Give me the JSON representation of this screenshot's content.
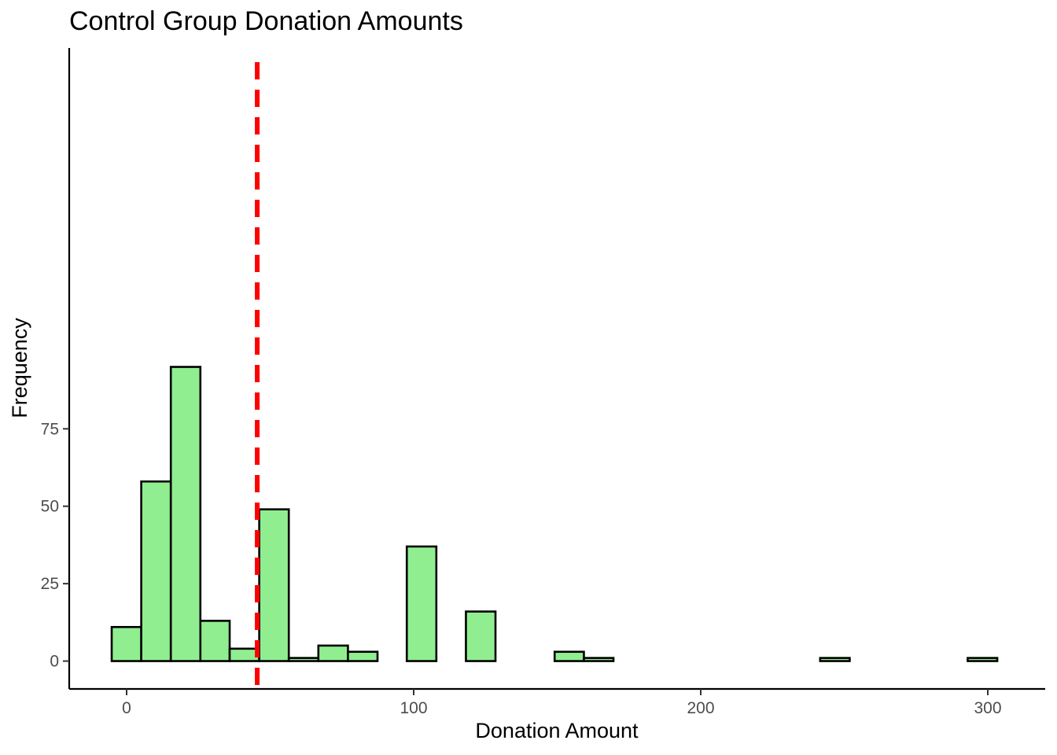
{
  "chart_data": {
    "type": "bar",
    "title": "Control Group Donation Amounts",
    "xlabel": "Donation Amount",
    "ylabel": "Frequency",
    "xlim": [
      -20,
      320
    ],
    "ylim": [
      -9,
      198
    ],
    "x_ticks": [
      {
        "value": 0,
        "label": "0"
      },
      {
        "value": 100,
        "label": "100"
      },
      {
        "value": 200,
        "label": "200"
      },
      {
        "value": 300,
        "label": "300"
      }
    ],
    "y_ticks": [
      {
        "value": 0,
        "label": "0"
      },
      {
        "value": 25,
        "label": "25"
      },
      {
        "value": 50,
        "label": "50"
      },
      {
        "value": 75,
        "label": "75"
      }
    ],
    "bins": [
      {
        "x0": -5.2,
        "x1": 5.1,
        "count": 11
      },
      {
        "x0": 5.1,
        "x1": 15.4,
        "count": 58
      },
      {
        "x0": 15.4,
        "x1": 25.7,
        "count": 95
      },
      {
        "x0": 25.7,
        "x1": 35.9,
        "count": 13
      },
      {
        "x0": 35.9,
        "x1": 46.2,
        "count": 4
      },
      {
        "x0": 46.2,
        "x1": 56.5,
        "count": 49
      },
      {
        "x0": 56.5,
        "x1": 66.8,
        "count": 1
      },
      {
        "x0": 66.8,
        "x1": 77.1,
        "count": 5
      },
      {
        "x0": 77.1,
        "x1": 87.4,
        "count": 3
      },
      {
        "x0": 87.4,
        "x1": 97.6,
        "count": 0
      },
      {
        "x0": 97.6,
        "x1": 107.9,
        "count": 37
      },
      {
        "x0": 107.9,
        "x1": 118.2,
        "count": 0
      },
      {
        "x0": 118.2,
        "x1": 128.5,
        "count": 16
      },
      {
        "x0": 128.5,
        "x1": 138.8,
        "count": 0
      },
      {
        "x0": 138.8,
        "x1": 149.1,
        "count": 0
      },
      {
        "x0": 149.1,
        "x1": 159.3,
        "count": 3
      },
      {
        "x0": 159.3,
        "x1": 169.6,
        "count": 1
      },
      {
        "x0": 169.6,
        "x1": 179.9,
        "count": 0
      },
      {
        "x0": 179.9,
        "x1": 190.2,
        "count": 0
      },
      {
        "x0": 190.2,
        "x1": 200.5,
        "count": 0
      },
      {
        "x0": 200.5,
        "x1": 210.8,
        "count": 0
      },
      {
        "x0": 210.8,
        "x1": 221.0,
        "count": 0
      },
      {
        "x0": 221.0,
        "x1": 231.3,
        "count": 0
      },
      {
        "x0": 231.3,
        "x1": 241.6,
        "count": 0
      },
      {
        "x0": 241.6,
        "x1": 251.9,
        "count": 1
      },
      {
        "x0": 251.9,
        "x1": 262.2,
        "count": 0
      },
      {
        "x0": 262.2,
        "x1": 272.5,
        "count": 0
      },
      {
        "x0": 272.5,
        "x1": 282.7,
        "count": 0
      },
      {
        "x0": 282.7,
        "x1": 293.0,
        "count": 0
      },
      {
        "x0": 293.0,
        "x1": 303.3,
        "count": 1
      }
    ],
    "mean_line": {
      "x": 45.5,
      "color": "#ff0000",
      "style": "dashed"
    },
    "bar_fill": "#90ee90",
    "bar_stroke": "#000000",
    "grid": false,
    "legend": "none"
  }
}
